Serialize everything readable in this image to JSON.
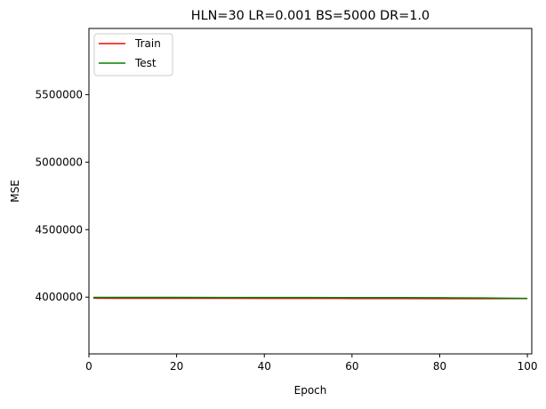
{
  "chart_data": {
    "type": "line",
    "title": "HLN=30 LR=0.001 BS=5000 DR=1.0",
    "xlabel": "Epoch",
    "ylabel": "MSE",
    "xlim": [
      0,
      101
    ],
    "ylim": [
      3580000,
      5990000
    ],
    "xticks": [
      0,
      20,
      40,
      60,
      80,
      100
    ],
    "yticks": [
      4000000,
      4500000,
      5000000,
      5500000
    ],
    "xtick_labels": [
      "0",
      "20",
      "40",
      "60",
      "80",
      "100"
    ],
    "ytick_labels": [
      "4000000",
      "4500000",
      "5000000",
      "5500000"
    ],
    "grid": false,
    "legend_position": "top-left",
    "series": [
      {
        "name": "Train",
        "color": "#ff0000",
        "x": [
          1,
          10,
          20,
          30,
          40,
          50,
          60,
          70,
          80,
          90,
          100
        ],
        "values": [
          3992000,
          3991800,
          3991600,
          3991300,
          3991000,
          3990600,
          3990200,
          3989600,
          3989000,
          3988800,
          3990000
        ]
      },
      {
        "name": "Test",
        "color": "#008000",
        "x": [
          1,
          10,
          20,
          30,
          40,
          50,
          60,
          70,
          80,
          90,
          100
        ],
        "values": [
          3998000,
          3998000,
          3997800,
          3997600,
          3997400,
          3997100,
          3996700,
          3996200,
          3995500,
          3994000,
          3991000
        ]
      }
    ]
  }
}
